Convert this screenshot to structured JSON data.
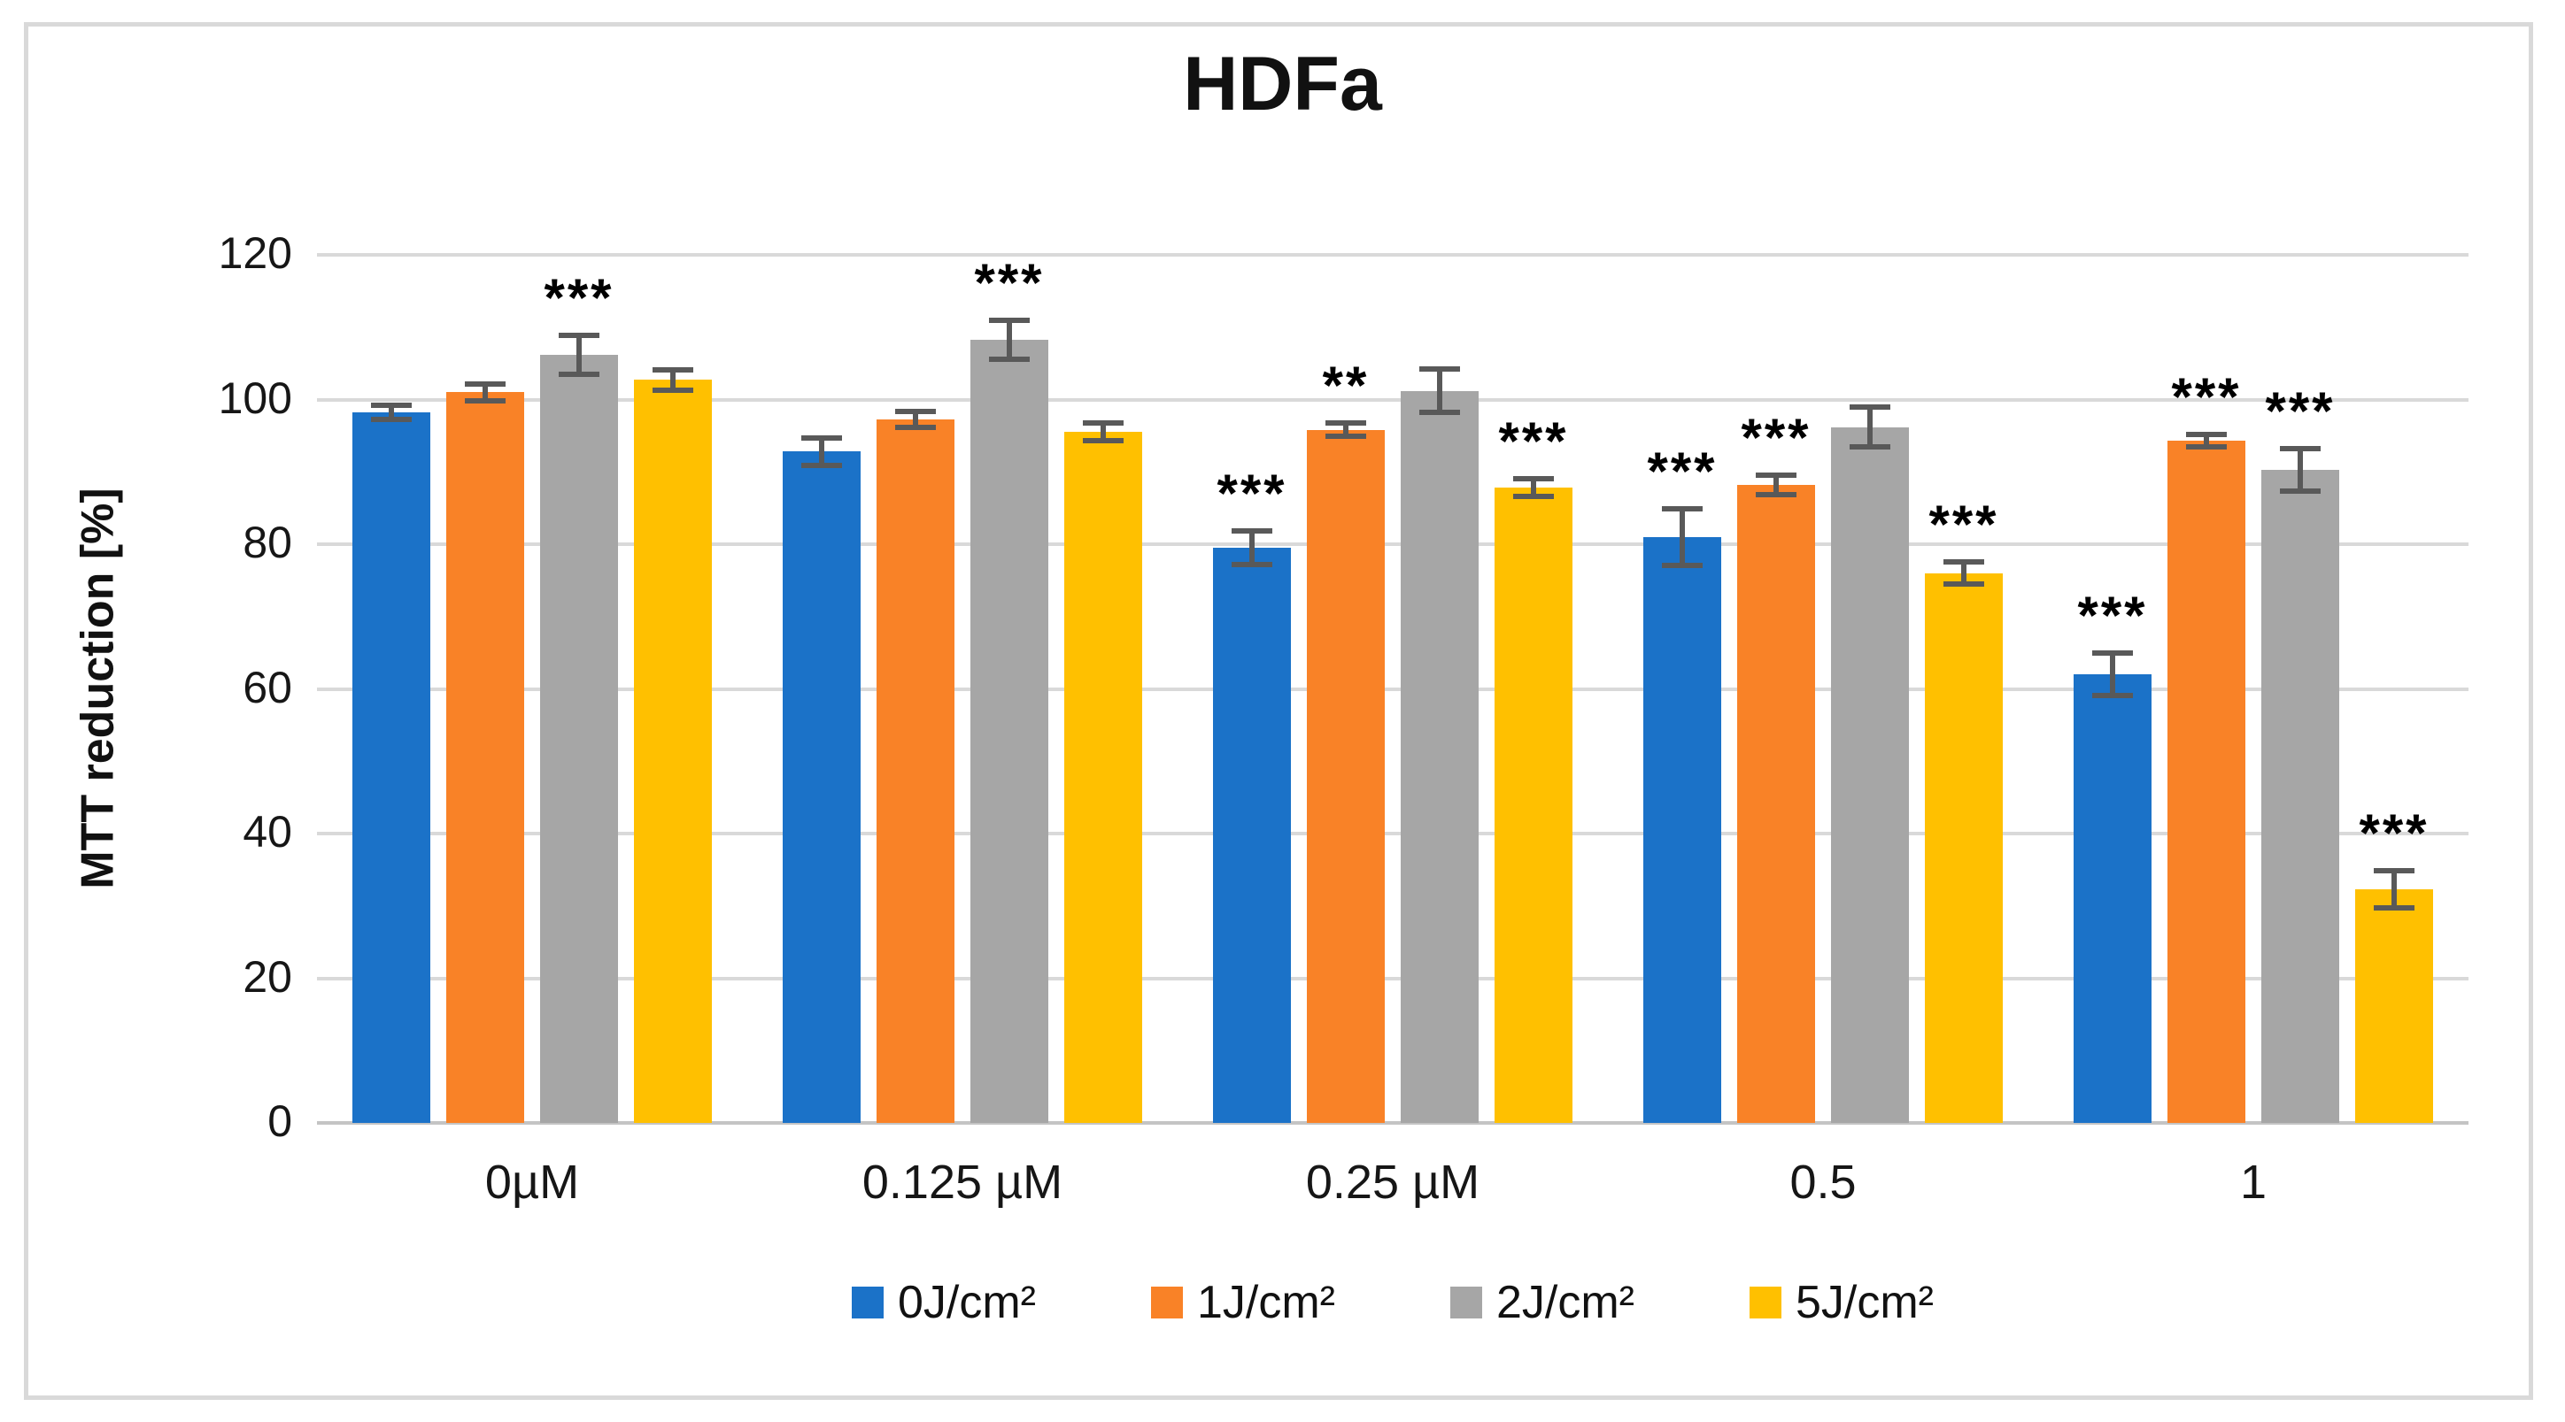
{
  "chart_data": {
    "type": "bar",
    "title": "HDFa",
    "ylabel": "MTT reduction [%]",
    "xlabel": "",
    "ylim": [
      0,
      120
    ],
    "yticks": [
      0,
      20,
      40,
      60,
      80,
      100,
      120
    ],
    "grid": true,
    "legend_position": "bottom",
    "categories": [
      "0µM",
      "0.125 µM",
      "0.25 µM",
      "0.5",
      "1"
    ],
    "series": [
      {
        "name": "0J/cm²",
        "color": "#1B72C8",
        "values": [
          98.2,
          92.8,
          79.5,
          81.0,
          62.0
        ],
        "errors": [
          1.0,
          1.9,
          2.3,
          3.9,
          2.9
        ],
        "significance": [
          "",
          "",
          "***",
          "***",
          "***"
        ]
      },
      {
        "name": "1J/cm²",
        "color": "#F98227",
        "values": [
          101.0,
          97.2,
          95.8,
          88.2,
          94.3
        ],
        "errors": [
          1.2,
          1.1,
          0.9,
          1.3,
          0.9
        ],
        "significance": [
          "",
          "",
          "**",
          "***",
          "***"
        ]
      },
      {
        "name": "2J/cm²",
        "color": "#A6A6A6",
        "values": [
          106.2,
          108.3,
          101.2,
          96.2,
          90.3
        ],
        "errors": [
          2.7,
          2.7,
          3.0,
          2.8,
          2.9
        ],
        "significance": [
          "***",
          "***",
          "",
          "",
          "***"
        ]
      },
      {
        "name": "5J/cm²",
        "color": "#FFC000",
        "values": [
          102.7,
          95.5,
          87.8,
          76.0,
          32.3
        ],
        "errors": [
          1.4,
          1.2,
          1.2,
          1.5,
          2.6
        ],
        "significance": [
          "",
          "",
          "***",
          "***",
          "***"
        ]
      }
    ],
    "colors": {
      "gridline": "#D9D9D9",
      "baseline": "#C4C4C4",
      "error_bar": "#595959",
      "frame_border": "#D9D9D9",
      "text": "#111111"
    }
  }
}
